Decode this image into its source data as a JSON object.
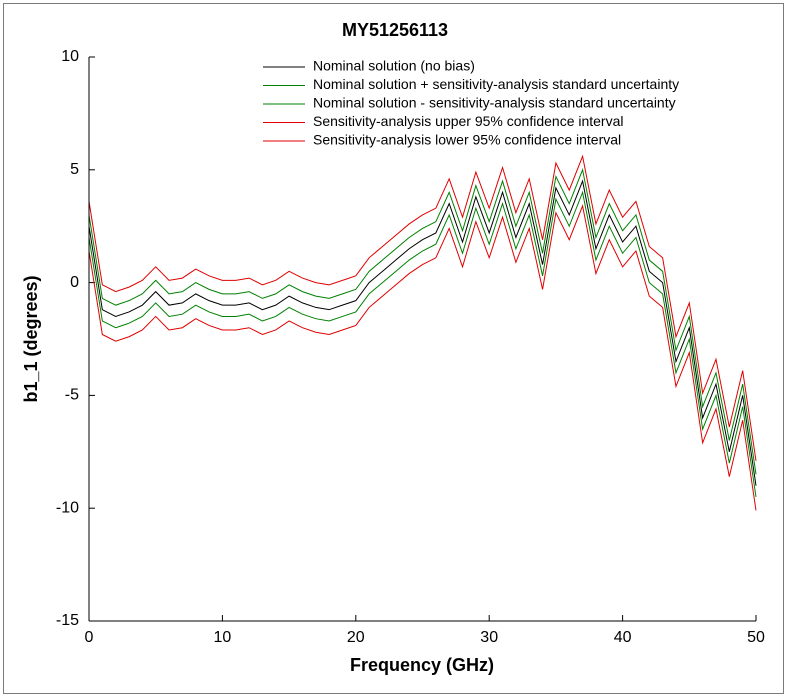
{
  "chart_data": {
    "type": "line",
    "title": "MY51256113",
    "xlabel": "Frequency (GHz)",
    "ylabel": "b1_1 (degrees)",
    "x": [
      0,
      1,
      2,
      3,
      4,
      5,
      6,
      7,
      8,
      9,
      10,
      11,
      12,
      13,
      14,
      15,
      16,
      17,
      18,
      19,
      20,
      21,
      22,
      23,
      24,
      25,
      26,
      27,
      28,
      29,
      30,
      31,
      32,
      33,
      34,
      35,
      36,
      37,
      38,
      39,
      40,
      41,
      42,
      43,
      44,
      45,
      46,
      47,
      48,
      49,
      50
    ],
    "xlim": [
      0,
      50
    ],
    "xticks": [
      0,
      10,
      20,
      30,
      40,
      50
    ],
    "ylim": [
      -15,
      10
    ],
    "yticks": [
      -15,
      -10,
      -5,
      0,
      5,
      10
    ],
    "grid": false,
    "legend": "top",
    "series": [
      {
        "name": "Nominal solution (no bias)",
        "color": "#000000",
        "values": [
          2.5,
          -1.2,
          -1.5,
          -1.3,
          -1.0,
          -0.4,
          -1.0,
          -0.9,
          -0.5,
          -0.8,
          -1.0,
          -1.0,
          -0.9,
          -1.2,
          -1.0,
          -0.6,
          -0.9,
          -1.1,
          -1.2,
          -1.0,
          -0.8,
          0.0,
          0.5,
          1.0,
          1.5,
          1.9,
          2.2,
          3.5,
          1.8,
          3.8,
          2.2,
          4.0,
          2.0,
          3.5,
          0.8,
          4.2,
          3.0,
          4.5,
          1.5,
          3.0,
          1.8,
          2.5,
          0.5,
          0.0,
          -3.5,
          -2.0,
          -6.0,
          -4.5,
          -7.5,
          -5.0,
          -9.0
        ]
      },
      {
        "name": "Nominal solution + sensitivity-analysis standard uncertainty",
        "color": "#008000",
        "values": [
          3.0,
          -0.7,
          -1.0,
          -0.8,
          -0.5,
          0.1,
          -0.5,
          -0.4,
          0.0,
          -0.3,
          -0.5,
          -0.5,
          -0.4,
          -0.7,
          -0.5,
          -0.1,
          -0.4,
          -0.6,
          -0.7,
          -0.5,
          -0.3,
          0.5,
          1.0,
          1.5,
          2.0,
          2.4,
          2.7,
          4.0,
          2.3,
          4.3,
          2.7,
          4.5,
          2.5,
          4.0,
          1.3,
          4.7,
          3.5,
          5.0,
          2.0,
          3.5,
          2.3,
          3.0,
          1.0,
          0.5,
          -3.0,
          -1.5,
          -5.5,
          -4.0,
          -7.0,
          -4.5,
          -8.5
        ]
      },
      {
        "name": "Nominal solution - sensitivity-analysis standard uncertainty",
        "color": "#008000",
        "values": [
          2.0,
          -1.7,
          -2.0,
          -1.8,
          -1.5,
          -0.9,
          -1.5,
          -1.4,
          -1.0,
          -1.3,
          -1.5,
          -1.5,
          -1.4,
          -1.7,
          -1.5,
          -1.1,
          -1.4,
          -1.6,
          -1.7,
          -1.5,
          -1.3,
          -0.5,
          0.0,
          0.5,
          1.0,
          1.4,
          1.7,
          3.0,
          1.3,
          3.3,
          1.7,
          3.5,
          1.5,
          3.0,
          0.3,
          3.7,
          2.5,
          4.0,
          1.0,
          2.5,
          1.3,
          2.0,
          0.0,
          -0.5,
          -4.0,
          -2.5,
          -6.5,
          -5.0,
          -8.0,
          -5.5,
          -9.5
        ]
      },
      {
        "name": "Sensitivity-analysis upper 95% confidence interval",
        "color": "#e00000",
        "values": [
          3.6,
          -0.1,
          -0.4,
          -0.2,
          0.1,
          0.7,
          0.1,
          0.2,
          0.6,
          0.3,
          0.1,
          0.1,
          0.2,
          -0.1,
          0.1,
          0.5,
          0.2,
          0.0,
          -0.1,
          0.1,
          0.3,
          1.1,
          1.6,
          2.1,
          2.6,
          3.0,
          3.3,
          4.6,
          2.9,
          4.9,
          3.3,
          5.1,
          3.1,
          4.6,
          1.9,
          5.3,
          4.1,
          5.6,
          2.6,
          4.1,
          2.9,
          3.6,
          1.6,
          1.1,
          -2.4,
          -0.9,
          -4.9,
          -3.4,
          -6.4,
          -3.9,
          -7.9
        ]
      },
      {
        "name": "Sensitivity-analysis lower 95% confidence interval",
        "color": "#e00000",
        "values": [
          1.4,
          -2.3,
          -2.6,
          -2.4,
          -2.1,
          -1.5,
          -2.1,
          -2.0,
          -1.6,
          -1.9,
          -2.1,
          -2.1,
          -2.0,
          -2.3,
          -2.1,
          -1.7,
          -2.0,
          -2.2,
          -2.3,
          -2.1,
          -1.9,
          -1.1,
          -0.6,
          -0.1,
          0.4,
          0.8,
          1.1,
          2.4,
          0.7,
          2.7,
          1.1,
          2.9,
          0.9,
          2.4,
          -0.3,
          3.1,
          1.9,
          3.4,
          0.4,
          1.9,
          0.7,
          1.4,
          -0.6,
          -1.1,
          -4.6,
          -3.1,
          -7.1,
          -5.6,
          -8.6,
          -6.1,
          -10.1
        ]
      }
    ]
  }
}
